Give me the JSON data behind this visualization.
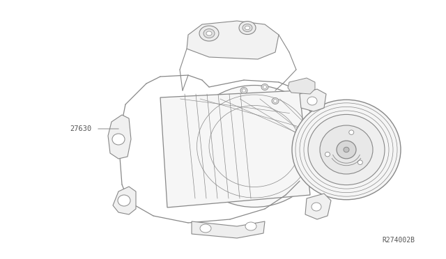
{
  "background_color": "#ffffff",
  "line_color": "#888888",
  "text_color": "#555555",
  "part_label": "27630",
  "ref_code": "R274002B",
  "label_fontsize": 7.5,
  "ref_fontsize": 7
}
